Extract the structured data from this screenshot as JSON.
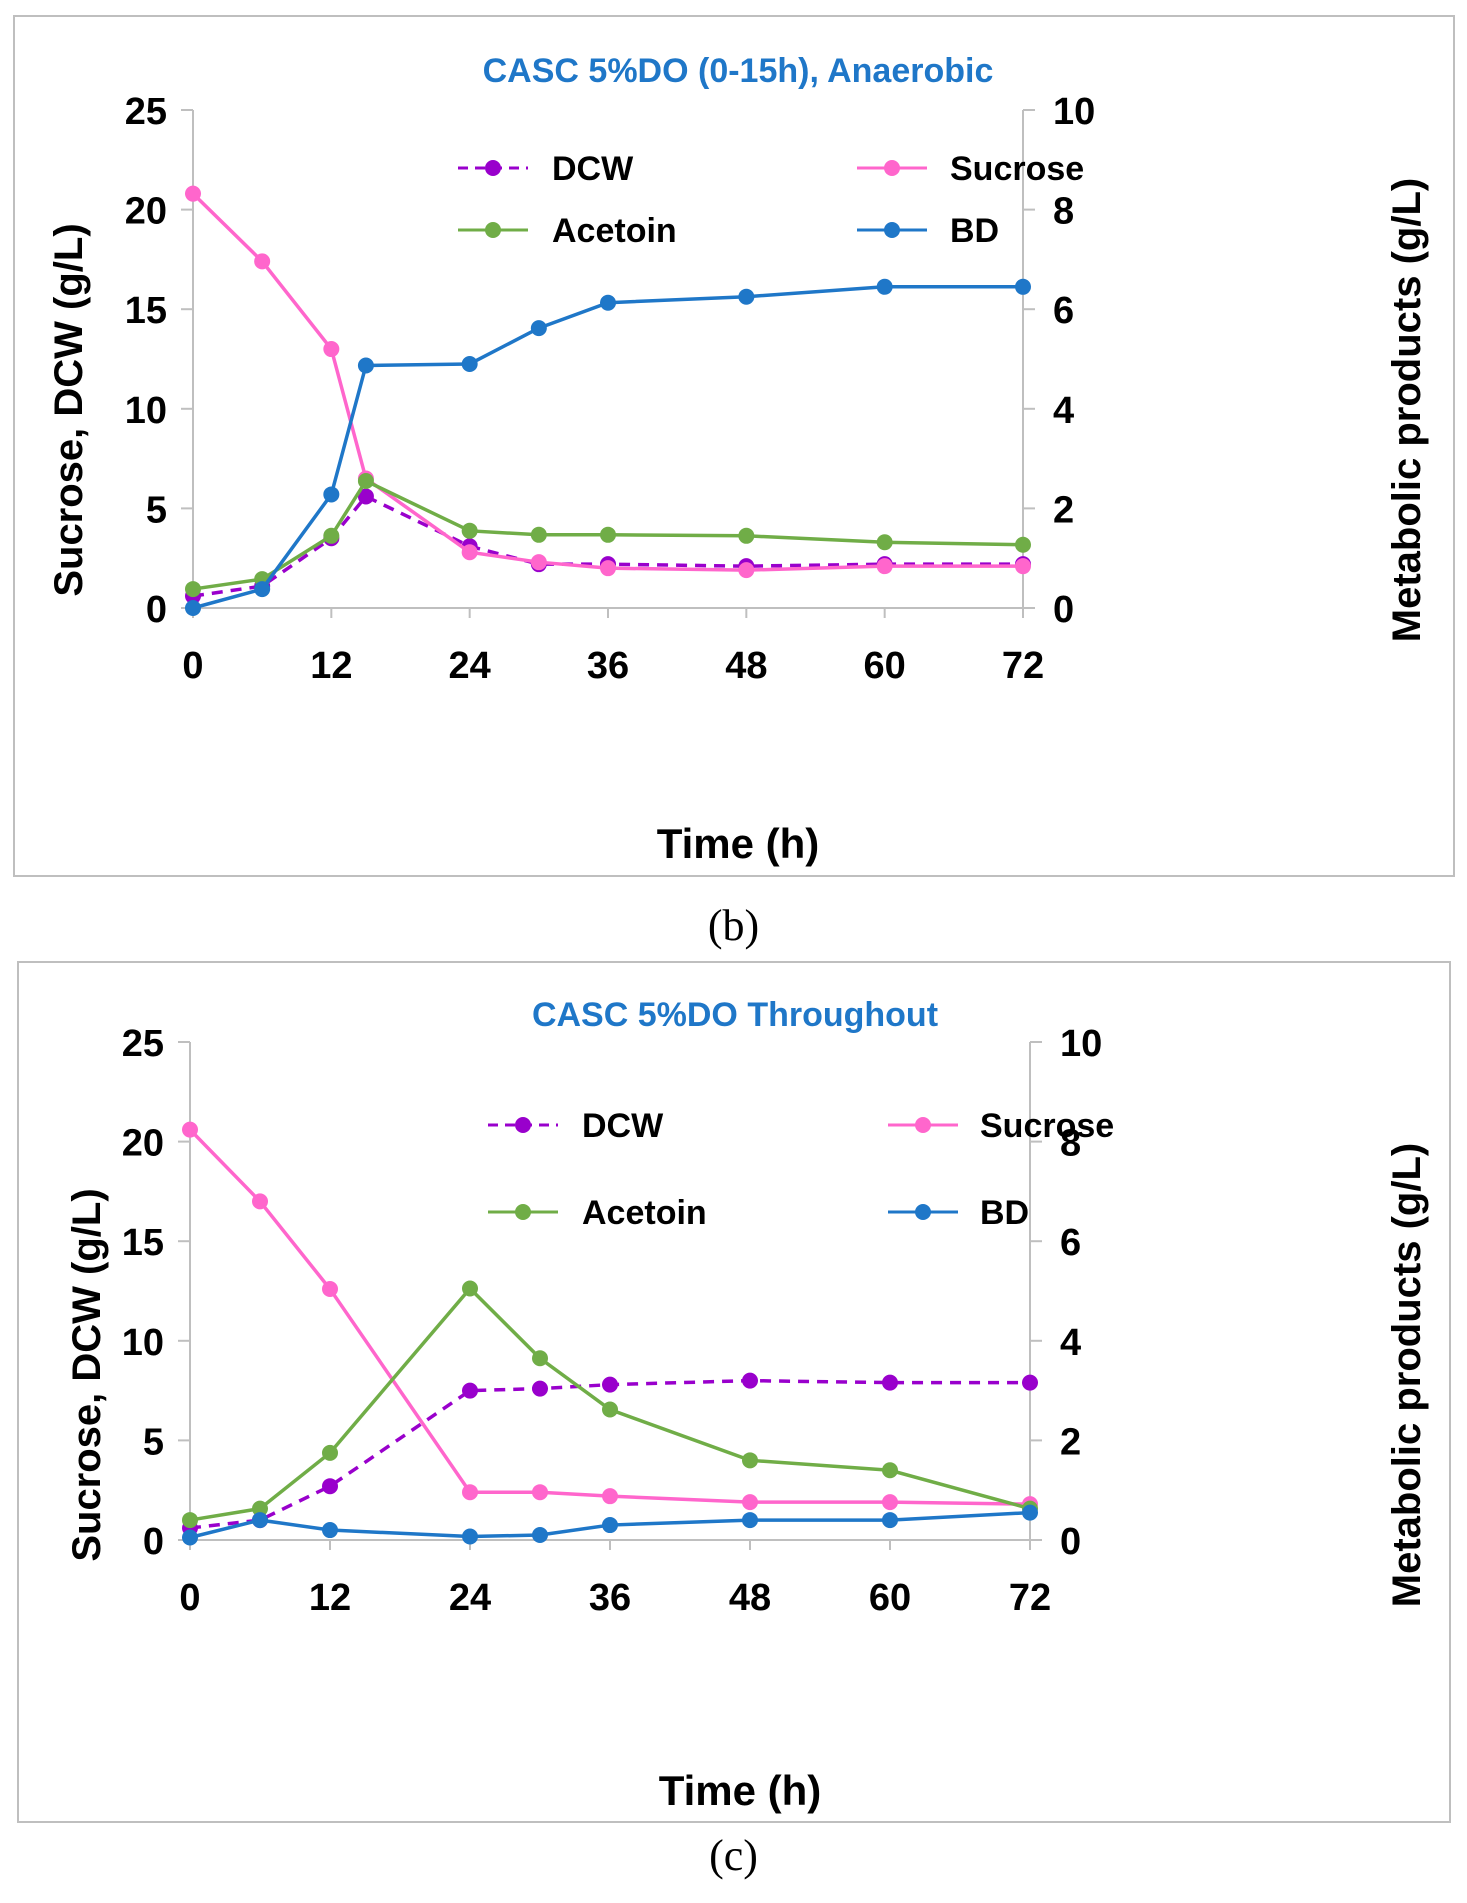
{
  "chart_data": [
    {
      "type": "line",
      "panel_label": "(b)",
      "title": "CASC 5%DO (0-15h), Anaerobic",
      "xlabel": "Time (h)",
      "ylabel_left": "Sucrose, DCW (g/L)",
      "ylabel_right": "Metabolic products (g/L)",
      "xlim": [
        0,
        72
      ],
      "x_ticks": [
        0,
        12,
        24,
        36,
        48,
        60,
        72
      ],
      "ylim_left": [
        0,
        25
      ],
      "y_ticks_left": [
        0,
        5,
        10,
        15,
        20,
        25
      ],
      "ylim_right": [
        0,
        10
      ],
      "y_ticks_right": [
        0,
        2,
        4,
        6,
        8,
        10
      ],
      "grid": false,
      "series": [
        {
          "name": "DCW",
          "axis": "left",
          "color": "#9900CC",
          "dashed": true,
          "x": [
            0,
            6,
            12,
            15,
            24,
            30,
            36,
            48,
            60,
            72
          ],
          "values": [
            0.6,
            1.1,
            3.5,
            5.6,
            3.1,
            2.2,
            2.2,
            2.1,
            2.2,
            2.2
          ]
        },
        {
          "name": "Sucrose",
          "axis": "left",
          "color": "#FF66CC",
          "dashed": false,
          "x": [
            0,
            6,
            12,
            15,
            24,
            30,
            36,
            48,
            60,
            72
          ],
          "values": [
            20.8,
            17.4,
            13.0,
            6.5,
            2.8,
            2.3,
            2.0,
            1.9,
            2.1,
            2.1
          ]
        },
        {
          "name": "Acetoin",
          "axis": "right",
          "color": "#70AD47",
          "dashed": false,
          "x": [
            0,
            6,
            12,
            15,
            24,
            30,
            36,
            48,
            60,
            72
          ],
          "values": [
            0.38,
            0.58,
            1.45,
            2.55,
            1.55,
            1.47,
            1.47,
            1.45,
            1.32,
            1.27
          ]
        },
        {
          "name": "BD",
          "axis": "right",
          "color": "#1F77C8",
          "dashed": false,
          "x": [
            0,
            6,
            12,
            15,
            24,
            30,
            36,
            48,
            60,
            72
          ],
          "values": [
            0.0,
            0.38,
            2.28,
            4.87,
            4.9,
            5.62,
            6.13,
            6.25,
            6.45,
            6.45
          ]
        }
      ]
    },
    {
      "type": "line",
      "panel_label": "(c)",
      "title": "CASC 5%DO Throughout",
      "xlabel": "Time (h)",
      "ylabel_left": "Sucrose, DCW  (g/L)",
      "ylabel_right": "Metabolic products (g/L)",
      "xlim": [
        0,
        72
      ],
      "x_ticks": [
        0,
        12,
        24,
        36,
        48,
        60,
        72
      ],
      "ylim_left": [
        0,
        25
      ],
      "y_ticks_left": [
        0,
        5,
        10,
        15,
        20,
        25
      ],
      "ylim_right": [
        0,
        10
      ],
      "y_ticks_right": [
        0,
        2,
        4,
        6,
        8,
        10
      ],
      "grid": false,
      "series": [
        {
          "name": "DCW",
          "axis": "left",
          "color": "#9900CC",
          "dashed": true,
          "x": [
            0,
            6,
            12,
            24,
            30,
            36,
            48,
            60,
            72
          ],
          "values": [
            0.6,
            1.0,
            2.7,
            7.5,
            7.6,
            7.8,
            8.0,
            7.9,
            7.9
          ]
        },
        {
          "name": "Sucrose",
          "axis": "left",
          "color": "#FF66CC",
          "dashed": false,
          "x": [
            0,
            6,
            12,
            24,
            30,
            36,
            48,
            60,
            72
          ],
          "values": [
            20.6,
            17.0,
            12.6,
            2.4,
            2.4,
            2.2,
            1.9,
            1.9,
            1.8
          ]
        },
        {
          "name": "Acetoin",
          "axis": "right",
          "color": "#70AD47",
          "dashed": false,
          "x": [
            0,
            6,
            12,
            24,
            30,
            36,
            48,
            60,
            72
          ],
          "values": [
            0.4,
            0.63,
            1.75,
            5.05,
            3.65,
            2.62,
            1.6,
            1.4,
            0.63
          ]
        },
        {
          "name": "BD",
          "axis": "right",
          "color": "#1F77C8",
          "dashed": false,
          "x": [
            0,
            6,
            12,
            24,
            30,
            36,
            48,
            60,
            72
          ],
          "values": [
            0.05,
            0.4,
            0.2,
            0.07,
            0.1,
            0.3,
            0.4,
            0.4,
            0.55
          ]
        }
      ]
    }
  ]
}
